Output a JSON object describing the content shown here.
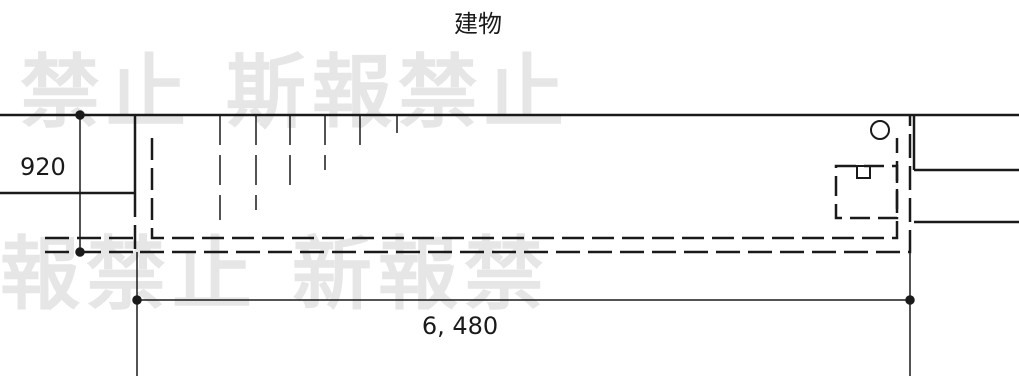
{
  "drawing": {
    "building_label": "建物",
    "dim_horizontal": "6, 480",
    "dim_vertical": "920"
  },
  "watermark": {
    "row1": "禁止  斯報禁止",
    "row2": "報禁止  新報禁"
  }
}
